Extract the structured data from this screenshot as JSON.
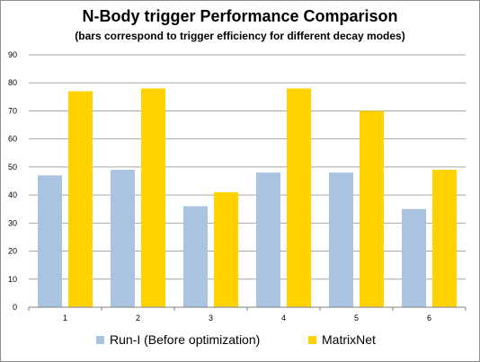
{
  "chart_data": {
    "type": "bar",
    "title": "N-Body trigger Performance Comparison",
    "subtitle": "(bars correspond to trigger efficiency for different decay modes)",
    "categories": [
      "1",
      "2",
      "3",
      "4",
      "5",
      "6"
    ],
    "series": [
      {
        "name": "Run-I (Before optimization)",
        "color": "#a9c3e1",
        "values": [
          47,
          49,
          36,
          48,
          48,
          35
        ]
      },
      {
        "name": "MatrixNet",
        "color": "#ffd200",
        "values": [
          77,
          78,
          41,
          78,
          70,
          49
        ]
      }
    ],
    "ylim": [
      0,
      90
    ],
    "yticks": [
      0,
      10,
      20,
      30,
      40,
      50,
      60,
      70,
      80,
      90
    ],
    "grid": true,
    "legend": "bottom"
  }
}
